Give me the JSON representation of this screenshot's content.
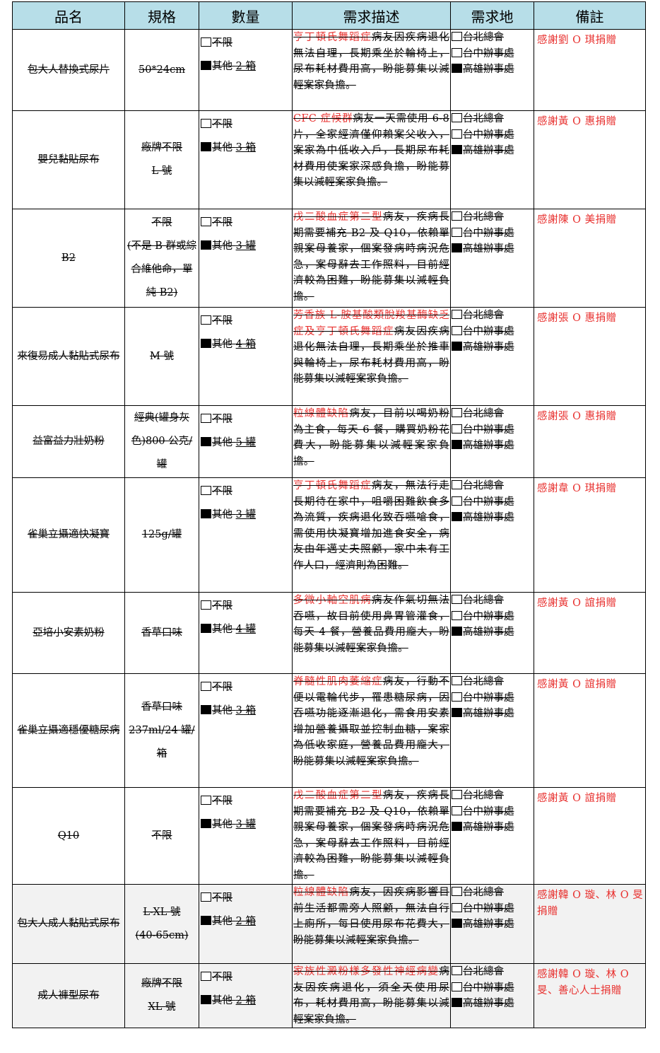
{
  "headers": [
    "品名",
    "規格",
    "數量",
    "需求描述",
    "需求地",
    "備註"
  ],
  "qty_options": {
    "unlimited": "不限",
    "other": "其他"
  },
  "locations": [
    "台北總會",
    "台中辦事處",
    "高雄辦事處"
  ],
  "rows": [
    {
      "name": "包大人替換式尿片",
      "spec": [
        "50*24cm"
      ],
      "qty": "2 箱",
      "desc_red": "亨丁頓氏舞蹈症",
      "desc": "病友因疾病退化無法自理，長期乘坐於輪椅上，尿布耗材費用高，盼能募集以減輕案家負擔。",
      "note": "感謝劉 O 琪捐贈"
    },
    {
      "name": "嬰兒黏貼尿布",
      "spec": [
        "廠牌不限",
        "L 號"
      ],
      "qty": "3 箱",
      "desc_red": "CFC 症候群",
      "desc": "病友一天需使用 6-8 片，全家經濟僅仰賴案父收入，案家為中低收入戶，長期尿布耗材費用使案家深感負擔，盼能募集以減輕案家負擔。",
      "note": "感謝黃 O 惠捐贈"
    },
    {
      "name": "B2",
      "spec": [
        "不限",
        "(不是 B 群或綜合維他命，單純 B2)"
      ],
      "qty": "3 罐",
      "desc_red": "戊二酸血症第二型",
      "desc": "病友，疾病長期需要補充 B2 及 Q10，依賴單親案母養家，個案發病時病況危急，案母辭去工作照料，目前經濟較為困難，盼能募集以減輕負擔。",
      "note": "感謝陳 O 美捐贈"
    },
    {
      "name": "來復易成人黏貼式尿布",
      "spec": [
        "M 號"
      ],
      "qty": "4 箱",
      "desc_red": "芳香族 L-胺基酸類脫羧基酶缺乏症及亨丁頓氏舞蹈症",
      "desc": "病友因疾病退化無法自理，長期乘坐於推車與輪椅上，尿布耗材費用高，盼能募集以減輕案家負擔。",
      "note": "感謝張 O 惠捐贈"
    },
    {
      "name": "益富益力壯奶粉",
      "spec": [
        "經典(罐身灰色)800 公克/罐"
      ],
      "qty": "5 罐",
      "desc_red": "粒線體缺陷",
      "desc": "病友，目前以喝奶粉為主食，每天 6 餐，購買奶粉花費大，盼能募集以減輕案家負擔。",
      "note": "感謝張 O 惠捐贈"
    },
    {
      "name": "雀巢立攝適快凝寶",
      "spec": [
        "125g/罐"
      ],
      "qty": "3 罐",
      "desc_red": "亨丁頓氏舞蹈症",
      "desc": "病友，無法行走長期待在家中，咀嚼困難飲食多為流質，疾病退化致吞嚥嗆食，需使用快凝寶增加進食安全，病友由年邁丈夫照顧，家中未有工作人口，經濟則為困難。",
      "note": "感謝韋 O 琪捐贈"
    },
    {
      "name": "亞培小安素奶粉",
      "spec": [
        "香草口味"
      ],
      "qty": "4 罐",
      "desc_red": "多微小軸空肌病",
      "desc": "病友作氣切無法吞嚥，故目前使用鼻胃管灌食，每天 4 餐，營養品費用龐大，盼能募集以減輕案家負擔。",
      "note": "感謝黃 O 誼捐贈"
    },
    {
      "name": "雀巢立攝適穩優糖尿病",
      "spec": [
        "香草口味",
        "237ml/24 罐/箱"
      ],
      "qty": "3 箱",
      "desc_red": "脊髓性肌肉萎縮症",
      "desc": "病友，行動不便以電輪代步，罹患糖尿病，因吞嚥功能逐漸退化，需食用安素增加營養攝取並控制血糖，案家為低收家庭，營養品費用龐大，盼能募集以減輕案家負擔。",
      "note": "感謝黃 O 誼捐贈"
    },
    {
      "name": "Q10",
      "spec": [
        "不限"
      ],
      "qty": "3 罐",
      "desc_red": "戊二酸血症第二型",
      "desc": "病友，疾病長期需要補充 B2 及 Q10，依賴單親案母養家，個案發病時病況危急，案母辭去工作照料，目前經濟較為困難，盼能募集以減輕負擔。",
      "note": "感謝黃 O 誼捐贈"
    },
    {
      "name": "包大人成人黏貼式尿布",
      "spec": [
        "L-XL 號",
        "(40-65cm)"
      ],
      "qty": "2 箱",
      "desc_red": "粒線體缺陷",
      "desc": "病友，因疾病影響目前生活都需旁人照顧，無法自行上廁所，每日使用尿布花費大，盼能募集以減輕案家負擔。",
      "note": "感謝韓 O 璇、林 O 旻捐贈"
    },
    {
      "name": "成人褲型尿布",
      "spec": [
        "廠牌不限",
        "XL 號"
      ],
      "qty": "2 箱",
      "desc_red": "家族性澱粉樣多發性神經病變",
      "desc": "病友因疾病退化，須全天使用尿布，耗材費用高，盼能募集以減輕案家負擔。",
      "note": "感謝韓 O 璇、林 O 旻、善心人士捐贈"
    }
  ]
}
